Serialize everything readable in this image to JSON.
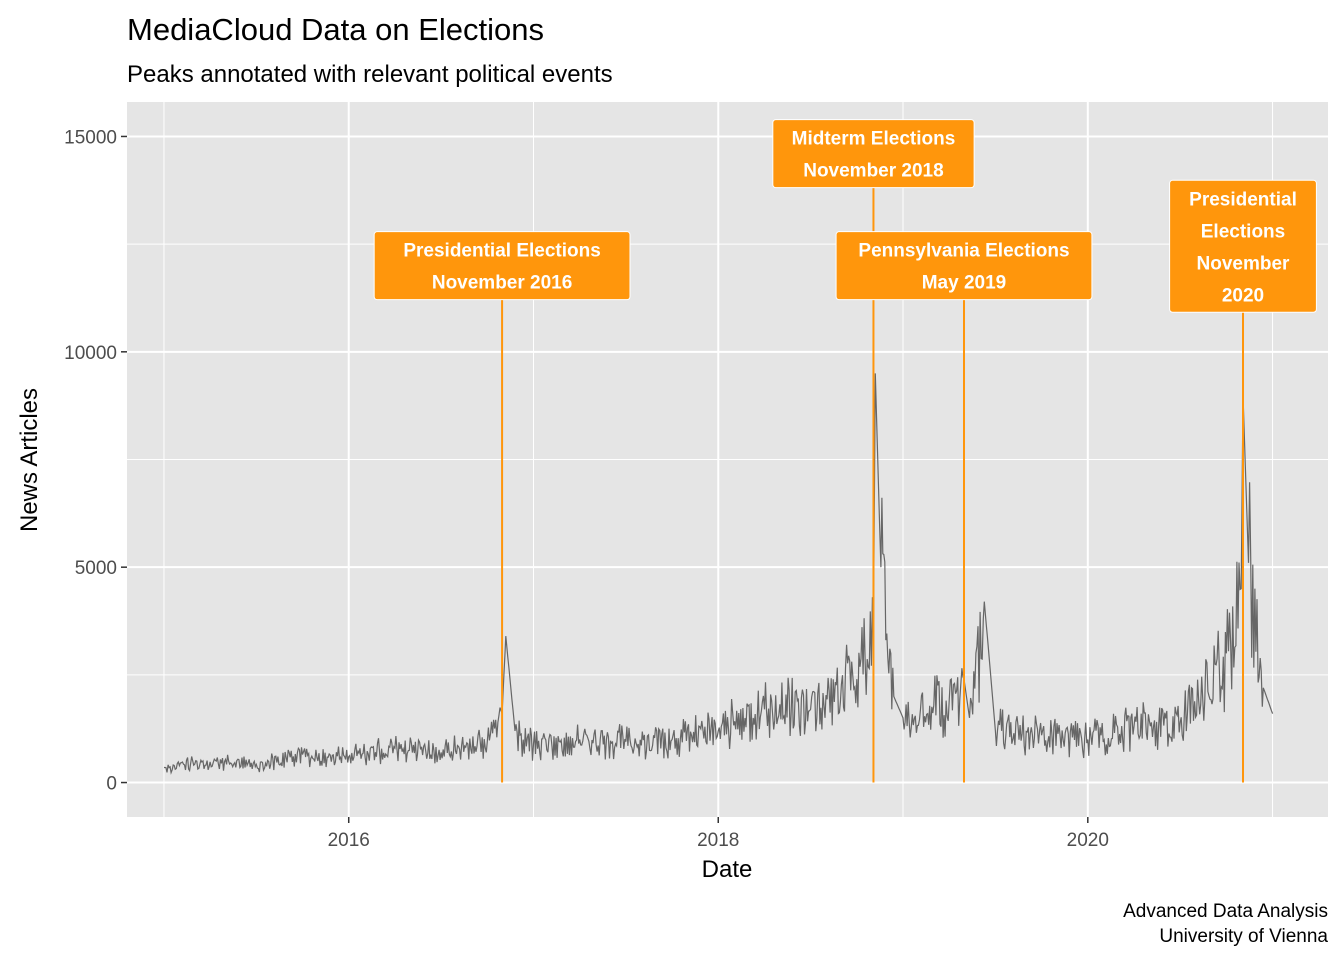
{
  "chart_data": {
    "type": "line",
    "title": "MediaCloud Data on Elections",
    "subtitle": "Peaks annotated with relevant political events",
    "xlabel": "Date",
    "ylabel": "News Articles",
    "caption": [
      "Advanced Data Analysis",
      "University of Vienna"
    ],
    "xlim": [
      2014.8,
      2021.3
    ],
    "ylim": [
      -800,
      15800
    ],
    "x_ticks": [
      2016,
      2018,
      2020
    ],
    "x_tick_labels": [
      "2016",
      "2018",
      "2020"
    ],
    "y_ticks": [
      0,
      5000,
      10000,
      15000
    ],
    "y_tick_labels": [
      "0",
      "5000",
      "10000",
      "15000"
    ],
    "grid": true,
    "series": [
      {
        "name": "News Articles",
        "color": "#666666",
        "points": [
          [
            2015.0,
            350
          ],
          [
            2015.25,
            480
          ],
          [
            2015.5,
            420
          ],
          [
            2015.75,
            650
          ],
          [
            2016.0,
            600
          ],
          [
            2016.25,
            800
          ],
          [
            2016.5,
            700
          ],
          [
            2016.75,
            950
          ],
          [
            2016.83,
            1600
          ],
          [
            2016.85,
            3400
          ],
          [
            2016.9,
            1200
          ],
          [
            2017.0,
            900
          ],
          [
            2017.25,
            1000
          ],
          [
            2017.5,
            950
          ],
          [
            2017.75,
            1000
          ],
          [
            2018.0,
            1200
          ],
          [
            2018.25,
            1700
          ],
          [
            2018.5,
            1700
          ],
          [
            2018.75,
            2400
          ],
          [
            2018.84,
            3800
          ],
          [
            2018.85,
            9500
          ],
          [
            2018.88,
            5000
          ],
          [
            2018.95,
            2000
          ],
          [
            2019.0,
            1500
          ],
          [
            2019.25,
            1900
          ],
          [
            2019.33,
            2400
          ],
          [
            2019.36,
            1500
          ],
          [
            2019.44,
            4200
          ],
          [
            2019.5,
            1200
          ],
          [
            2019.75,
            1100
          ],
          [
            2020.0,
            1000
          ],
          [
            2020.25,
            1300
          ],
          [
            2020.5,
            1400
          ],
          [
            2020.75,
            3000
          ],
          [
            2020.83,
            4500
          ],
          [
            2020.84,
            9000
          ],
          [
            2020.87,
            5100
          ],
          [
            2020.95,
            2200
          ],
          [
            2021.0,
            1600
          ]
        ]
      }
    ],
    "annotations": [
      {
        "lines": [
          "Presidential Elections",
          "November 2016"
        ],
        "x": 2016.83,
        "label_y": 12000,
        "color": "#ff960c"
      },
      {
        "lines": [
          "Midterm Elections",
          "November 2018"
        ],
        "x": 2018.84,
        "label_y": 14600,
        "color": "#ff960c"
      },
      {
        "lines": [
          "Pennsylvania Elections",
          "May 2019"
        ],
        "x": 2019.33,
        "label_y": 12000,
        "color": "#ff960c"
      },
      {
        "lines": [
          "Presidential",
          "Elections",
          "November",
          "2020"
        ],
        "x": 2020.84,
        "label_y": 12450,
        "color": "#ff960c"
      }
    ]
  }
}
